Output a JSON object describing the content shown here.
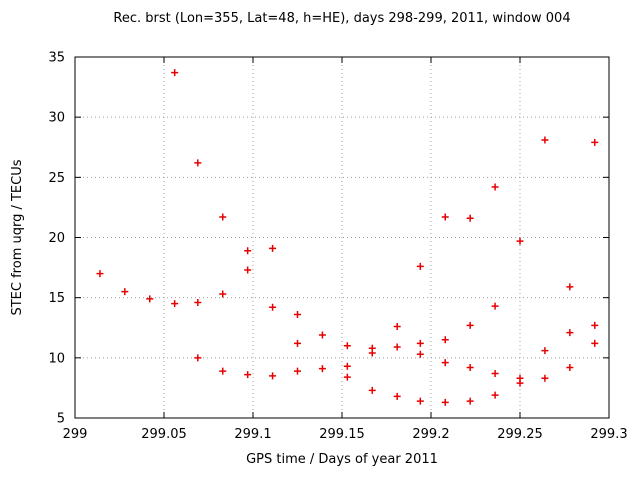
{
  "chart_data": {
    "type": "scatter",
    "title": "Rec. brst (Lon=355, Lat=48, h=HE), days 298-299, 2011, window 004",
    "xlabel": "GPS time / Days of year 2011",
    "ylabel": "STEC from uqrg / TECUs",
    "xlim": [
      299,
      299.3
    ],
    "ylim": [
      5,
      35
    ],
    "xticks": [
      {
        "value": 299,
        "label": "299"
      },
      {
        "value": 299.05,
        "label": "299.05"
      },
      {
        "value": 299.1,
        "label": "299.1"
      },
      {
        "value": 299.15,
        "label": "299.15"
      },
      {
        "value": 299.2,
        "label": "299.2"
      },
      {
        "value": 299.25,
        "label": "299.25"
      },
      {
        "value": 299.3,
        "label": "299.3"
      }
    ],
    "yticks": [
      {
        "value": 5,
        "label": "5"
      },
      {
        "value": 10,
        "label": "10"
      },
      {
        "value": 15,
        "label": "15"
      },
      {
        "value": 20,
        "label": "20"
      },
      {
        "value": 25,
        "label": "25"
      },
      {
        "value": 30,
        "label": "30"
      },
      {
        "value": 35,
        "label": "35"
      }
    ],
    "grid": true,
    "legend": "none",
    "marker": "plus",
    "marker_color": "#e60000",
    "grid_color": "#a0a0a0",
    "axis_color": "#000000",
    "points": [
      [
        299.014,
        17.0
      ],
      [
        299.028,
        15.5
      ],
      [
        299.042,
        14.9
      ],
      [
        299.056,
        33.7
      ],
      [
        299.056,
        14.5
      ],
      [
        299.069,
        26.2
      ],
      [
        299.069,
        14.6
      ],
      [
        299.069,
        10.0
      ],
      [
        299.083,
        21.7
      ],
      [
        299.083,
        15.3
      ],
      [
        299.083,
        8.9
      ],
      [
        299.097,
        18.9
      ],
      [
        299.097,
        17.3
      ],
      [
        299.097,
        8.6
      ],
      [
        299.111,
        19.1
      ],
      [
        299.111,
        14.2
      ],
      [
        299.111,
        8.5
      ],
      [
        299.125,
        13.6
      ],
      [
        299.125,
        11.2
      ],
      [
        299.125,
        8.9
      ],
      [
        299.139,
        11.9
      ],
      [
        299.139,
        9.1
      ],
      [
        299.153,
        11.0
      ],
      [
        299.153,
        9.3
      ],
      [
        299.153,
        8.4
      ],
      [
        299.167,
        10.8
      ],
      [
        299.167,
        10.4
      ],
      [
        299.167,
        7.3
      ],
      [
        299.181,
        12.6
      ],
      [
        299.181,
        10.9
      ],
      [
        299.181,
        6.8
      ],
      [
        299.194,
        17.6
      ],
      [
        299.194,
        11.2
      ],
      [
        299.194,
        10.3
      ],
      [
        299.194,
        6.4
      ],
      [
        299.208,
        21.7
      ],
      [
        299.208,
        11.5
      ],
      [
        299.208,
        9.6
      ],
      [
        299.208,
        6.3
      ],
      [
        299.222,
        21.6
      ],
      [
        299.222,
        12.7
      ],
      [
        299.222,
        9.2
      ],
      [
        299.222,
        6.4
      ],
      [
        299.236,
        24.2
      ],
      [
        299.236,
        14.3
      ],
      [
        299.236,
        8.7
      ],
      [
        299.236,
        6.9
      ],
      [
        299.25,
        19.7
      ],
      [
        299.25,
        8.3
      ],
      [
        299.25,
        7.9
      ],
      [
        299.264,
        28.1
      ],
      [
        299.264,
        10.6
      ],
      [
        299.264,
        8.3
      ],
      [
        299.278,
        15.9
      ],
      [
        299.278,
        12.1
      ],
      [
        299.278,
        9.2
      ],
      [
        299.292,
        27.9
      ],
      [
        299.292,
        12.7
      ],
      [
        299.292,
        11.2
      ]
    ]
  }
}
